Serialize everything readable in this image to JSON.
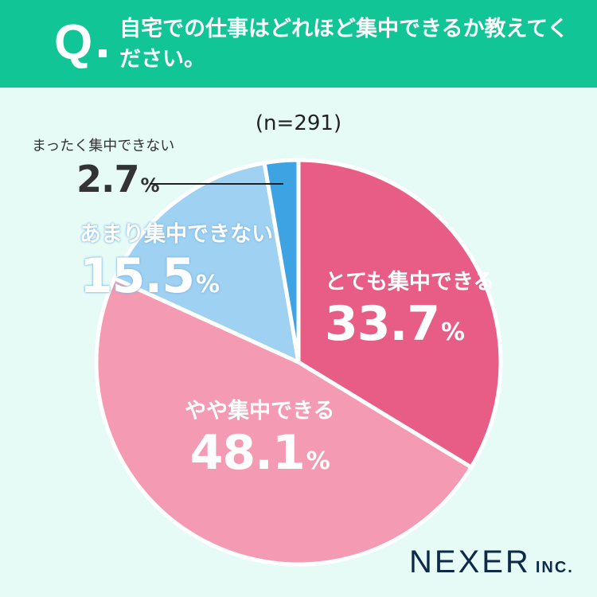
{
  "header": {
    "q_mark": "Q",
    "question": "自宅での仕事はどれほど集中できるか教えてください。"
  },
  "chart_data": {
    "type": "pie",
    "sample_label": "(n=291)",
    "start_angle_deg": 0,
    "direction": "clockwise",
    "slices": [
      {
        "key": "high",
        "label": "とても集中できる",
        "value": 33.7,
        "pct_text": "33.7",
        "color": "#e85d86"
      },
      {
        "key": "some",
        "label": "やや集中できる",
        "value": 48.1,
        "pct_text": "48.1",
        "color": "#f49ab2"
      },
      {
        "key": "low",
        "label": "あまり集中できない",
        "value": 15.5,
        "pct_text": "15.5",
        "color": "#9fd1f2"
      },
      {
        "key": "none",
        "label": "まったく集中できない",
        "value": 2.7,
        "pct_text": "2.7",
        "color": "#3ea3e3"
      }
    ],
    "percent_sign": "%",
    "separator_color": "#ffffff"
  },
  "logo": {
    "name": "NEXER",
    "suffix": "INC."
  }
}
